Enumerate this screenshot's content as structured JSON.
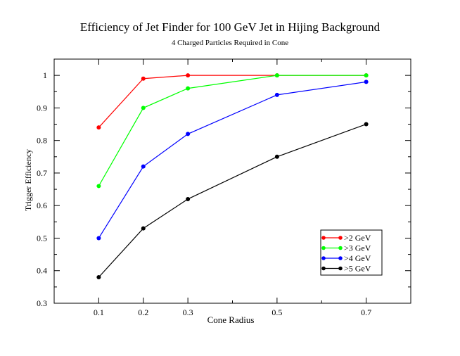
{
  "chart_data": {
    "type": "line",
    "title": "Efficiency of Jet Finder for 100 GeV Jet in Hijing Background",
    "subtitle": "4 Charged Particles Required in Cone",
    "xlabel": "Cone Radius",
    "ylabel": "Trigger Efficiency",
    "xlim": [
      0.0,
      0.8
    ],
    "ylim": [
      0.3,
      1.05
    ],
    "xticks": [
      0.1,
      0.2,
      0.3,
      0.5,
      0.7
    ],
    "xtick_labels": [
      "0.1",
      "0.2",
      "0.3",
      "0.5",
      "0.7"
    ],
    "yticks": [
      0.3,
      0.4,
      0.5,
      0.6,
      0.7,
      0.8,
      0.9,
      1.0
    ],
    "ytick_labels": [
      "0.3",
      "0.4",
      "0.5",
      "0.6",
      "0.7",
      "0.8",
      "0.9",
      "1"
    ],
    "grid": false,
    "legend_position": "bottom-right",
    "x": [
      0.1,
      0.2,
      0.3,
      0.5,
      0.7
    ],
    "series": [
      {
        "name": ">2 GeV",
        "color": "#ff0000",
        "values": [
          0.84,
          0.99,
          1.0,
          1.0,
          1.0
        ]
      },
      {
        "name": ">3 GeV",
        "color": "#00ff00",
        "values": [
          0.66,
          0.9,
          0.96,
          1.0,
          1.0
        ]
      },
      {
        "name": ">4 GeV",
        "color": "#0000ff",
        "values": [
          0.5,
          0.72,
          0.82,
          0.94,
          0.98
        ]
      },
      {
        "name": ">5 GeV",
        "color": "#000000",
        "values": [
          0.38,
          0.53,
          0.62,
          0.75,
          0.85
        ]
      }
    ]
  }
}
